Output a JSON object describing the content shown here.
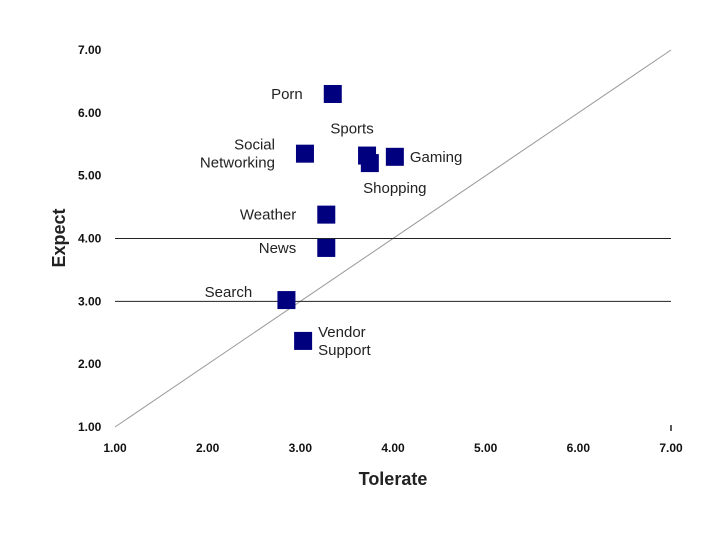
{
  "chart_data": {
    "type": "scatter",
    "title": "",
    "xlabel": "Tolerate",
    "ylabel": "Expect",
    "xlim": [
      1,
      7
    ],
    "ylim": [
      1,
      7
    ],
    "x_ticks": [
      "1.00",
      "2.00",
      "3.00",
      "4.00",
      "5.00",
      "6.00",
      "7.00"
    ],
    "y_ticks": [
      "1.00",
      "2.00",
      "3.00",
      "4.00",
      "5.00",
      "6.00",
      "7.00"
    ],
    "reference_lines": {
      "horizontal": [
        4.0,
        3.0
      ],
      "diagonal": "y = x"
    },
    "marker_color": "#00007f",
    "line_color": "#222222",
    "diagonal_color": "#999999",
    "points": [
      {
        "name": "Porn",
        "label_lines": [
          "Porn"
        ],
        "x": 3.35,
        "y": 6.3,
        "label_side": "left"
      },
      {
        "name": "Social Networking",
        "label_lines": [
          "Social",
          "Networking"
        ],
        "x": 3.05,
        "y": 5.35,
        "label_side": "left"
      },
      {
        "name": "Sports",
        "label_lines": [
          "Sports"
        ],
        "x": 3.72,
        "y": 5.32,
        "label_side": "above"
      },
      {
        "name": "Shopping",
        "label_lines": [
          "Shopping"
        ],
        "x": 3.75,
        "y": 5.2,
        "label_side": "below"
      },
      {
        "name": "Gaming",
        "label_lines": [
          "Gaming"
        ],
        "x": 4.02,
        "y": 5.3,
        "label_side": "right"
      },
      {
        "name": "Weather",
        "label_lines": [
          "Weather"
        ],
        "x": 3.28,
        "y": 4.38,
        "label_side": "left"
      },
      {
        "name": "News",
        "label_lines": [
          "News"
        ],
        "x": 3.28,
        "y": 3.85,
        "label_side": "left"
      },
      {
        "name": "Search",
        "label_lines": [
          "Search"
        ],
        "x": 2.85,
        "y": 3.02,
        "label_side": "above-left"
      },
      {
        "name": "Vendor Support",
        "label_lines": [
          "Vendor",
          "Support"
        ],
        "x": 3.03,
        "y": 2.37,
        "label_side": "right"
      }
    ]
  }
}
